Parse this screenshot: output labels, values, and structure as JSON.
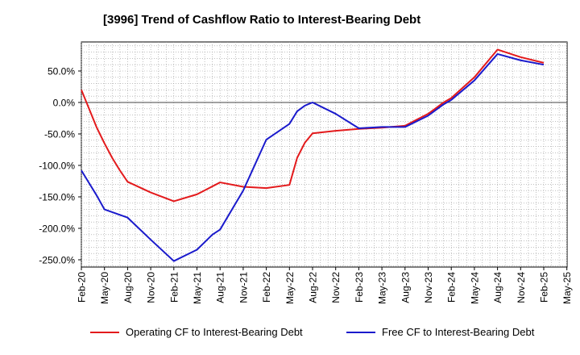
{
  "chart_data": {
    "type": "line",
    "title": "[3996]  Trend of Cashflow Ratio to Interest-Bearing Debt",
    "xlabel": "",
    "ylabel": "",
    "x_ticks": [
      "Feb-20",
      "May-20",
      "Aug-20",
      "Nov-20",
      "Feb-21",
      "May-21",
      "Aug-21",
      "Nov-21",
      "Feb-22",
      "May-22",
      "Aug-22",
      "Nov-22",
      "Feb-23",
      "May-23",
      "Aug-23",
      "Nov-23",
      "Feb-24",
      "May-24",
      "Aug-24",
      "Nov-24",
      "Feb-25",
      "May-25"
    ],
    "y_ticks": [
      "50.0%",
      "0.0%",
      "-50.0%",
      "-100.0%",
      "-150.0%",
      "-200.0%",
      "-250.0%"
    ],
    "ylim": [
      -260,
      95
    ],
    "grid": true,
    "legend_position": "bottom",
    "series": [
      {
        "name": "Operating CF to Interest-Bearing Debt",
        "color": "#e31a1c",
        "x": [
          "Feb-20",
          "Mar-20",
          "Apr-20",
          "May-20",
          "Jun-20",
          "Jul-20",
          "Aug-20",
          "Nov-20",
          "Feb-21",
          "May-21",
          "Aug-21",
          "Nov-21",
          "Feb-22",
          "May-22",
          "Jun-22",
          "Jul-22",
          "Aug-22",
          "Nov-22",
          "Feb-23",
          "May-23",
          "Aug-23",
          "Nov-23",
          "Dec-23",
          "Jan-24",
          "Feb-24",
          "May-24",
          "Aug-24",
          "Nov-24",
          "Feb-25"
        ],
        "values": [
          20,
          -10,
          -40,
          -65,
          -88,
          -108,
          -126,
          -143,
          -157,
          -146,
          -127,
          -134,
          -136,
          -131,
          -88,
          -64,
          -49,
          -45,
          -42,
          -40,
          -37,
          -18,
          -9,
          0,
          7,
          40,
          84,
          72,
          63
        ]
      },
      {
        "name": "Free CF to Interest-Bearing Debt",
        "color": "#1a1acc",
        "x": [
          "Feb-20",
          "Mar-20",
          "Apr-20",
          "May-20",
          "Aug-20",
          "Nov-20",
          "Feb-21",
          "May-21",
          "Jun-21",
          "Jul-21",
          "Aug-21",
          "Nov-21",
          "Feb-22",
          "May-22",
          "Jun-22",
          "Jul-22",
          "Aug-22",
          "Nov-22",
          "Feb-23",
          "May-23",
          "Aug-23",
          "Nov-23",
          "Dec-23",
          "Jan-24",
          "Feb-24",
          "May-24",
          "Aug-24",
          "Nov-24",
          "Feb-25"
        ],
        "values": [
          -108,
          -128,
          -148,
          -170,
          -183,
          -218,
          -252,
          -234,
          -222,
          -210,
          -202,
          -140,
          -59,
          -34,
          -14,
          -5,
          0,
          -18,
          -41,
          -39,
          -39,
          -21,
          -12,
          -3,
          4,
          35,
          77,
          67,
          60
        ]
      }
    ]
  }
}
